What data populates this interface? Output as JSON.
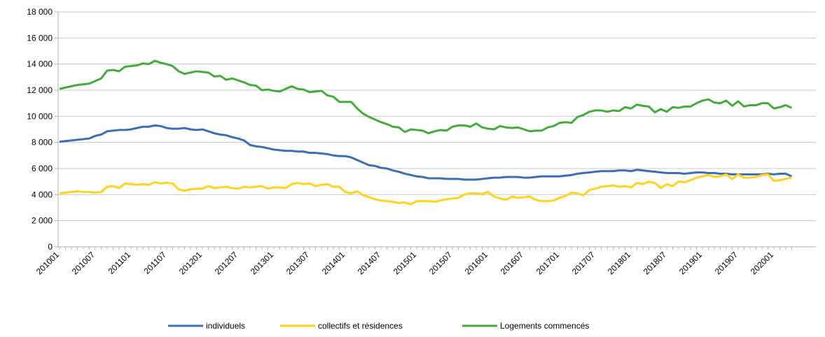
{
  "chart_data": {
    "type": "line",
    "categories": [
      "201001",
      null,
      null,
      null,
      null,
      null,
      "201007",
      null,
      null,
      null,
      null,
      null,
      "201101",
      null,
      null,
      null,
      null,
      null,
      "201107",
      null,
      null,
      null,
      null,
      null,
      "201201",
      null,
      null,
      null,
      null,
      null,
      "201207",
      null,
      null,
      null,
      null,
      null,
      "201301",
      null,
      null,
      null,
      null,
      null,
      "201307",
      null,
      null,
      null,
      null,
      null,
      "201401",
      null,
      null,
      null,
      null,
      null,
      "201407",
      null,
      null,
      null,
      null,
      null,
      "201501",
      null,
      null,
      null,
      null,
      null,
      "201507",
      null,
      null,
      null,
      null,
      null,
      "201601",
      null,
      null,
      null,
      null,
      null,
      "201607",
      null,
      null,
      null,
      null,
      null,
      "201701",
      null,
      null,
      null,
      null,
      null,
      "201707",
      null,
      null,
      null,
      null,
      null,
      "201801",
      null,
      null,
      null,
      null,
      null,
      "201807",
      null,
      null,
      null,
      null,
      null,
      "201901",
      null,
      null,
      null,
      null,
      null,
      "201907",
      null,
      null,
      null,
      null,
      null,
      "202001",
      null,
      null,
      null
    ],
    "series": [
      {
        "name": "individuels",
        "color": "#3d6db3",
        "values": [
          8050,
          8100,
          8150,
          8200,
          8250,
          8300,
          8500,
          8600,
          8850,
          8900,
          8950,
          8950,
          9000,
          9100,
          9200,
          9200,
          9300,
          9250,
          9100,
          9050,
          9050,
          9100,
          9000,
          8950,
          9000,
          8850,
          8700,
          8600,
          8550,
          8400,
          8300,
          8150,
          7800,
          7700,
          7650,
          7550,
          7450,
          7400,
          7350,
          7350,
          7300,
          7300,
          7200,
          7200,
          7150,
          7100,
          7000,
          6950,
          6950,
          6850,
          6650,
          6450,
          6250,
          6200,
          6050,
          6000,
          5850,
          5750,
          5600,
          5500,
          5400,
          5350,
          5250,
          5250,
          5250,
          5200,
          5200,
          5200,
          5150,
          5150,
          5150,
          5200,
          5250,
          5300,
          5300,
          5350,
          5350,
          5350,
          5300,
          5300,
          5350,
          5400,
          5400,
          5400,
          5400,
          5450,
          5500,
          5600,
          5650,
          5700,
          5750,
          5800,
          5800,
          5800,
          5850,
          5850,
          5800,
          5900,
          5850,
          5800,
          5750,
          5700,
          5650,
          5650,
          5650,
          5600,
          5650,
          5700,
          5700,
          5650,
          5650,
          5600,
          5600,
          5550,
          5550,
          5550,
          5550,
          5550,
          5550,
          5600,
          5550,
          5600,
          5600,
          5400
        ]
      },
      {
        "name": "collectifs et résidences",
        "color": "#ffd320",
        "values": [
          4100,
          4150,
          4200,
          4250,
          4200,
          4200,
          4150,
          4200,
          4600,
          4650,
          4500,
          4850,
          4800,
          4750,
          4800,
          4750,
          4950,
          4850,
          4900,
          4850,
          4400,
          4300,
          4400,
          4450,
          4450,
          4650,
          4500,
          4550,
          4600,
          4500,
          4450,
          4600,
          4550,
          4600,
          4650,
          4450,
          4550,
          4550,
          4500,
          4800,
          4900,
          4800,
          4850,
          4650,
          4750,
          4800,
          4600,
          4600,
          4200,
          4100,
          4250,
          3950,
          3800,
          3650,
          3550,
          3500,
          3450,
          3350,
          3400,
          3250,
          3500,
          3500,
          3500,
          3450,
          3550,
          3650,
          3700,
          3750,
          4000,
          4100,
          4100,
          4050,
          4200,
          3850,
          3700,
          3600,
          3850,
          3750,
          3800,
          3850,
          3600,
          3500,
          3500,
          3550,
          3750,
          3900,
          4150,
          4100,
          3950,
          4350,
          4450,
          4600,
          4650,
          4700,
          4600,
          4650,
          4550,
          4900,
          4800,
          5000,
          4900,
          4500,
          4800,
          4650,
          5000,
          4950,
          5100,
          5300,
          5400,
          5500,
          5350,
          5400,
          5550,
          5200,
          5550,
          5300,
          5300,
          5350,
          5500,
          5550,
          5050,
          5100,
          5200,
          5300
        ]
      },
      {
        "name": "Logements commencés",
        "color": "#45aa3e",
        "values": [
          12100,
          12200,
          12300,
          12400,
          12450,
          12500,
          12700,
          12900,
          13500,
          13550,
          13450,
          13800,
          13850,
          13900,
          14050,
          14000,
          14250,
          14100,
          14000,
          13850,
          13450,
          13250,
          13350,
          13450,
          13400,
          13350,
          13050,
          13100,
          12800,
          12900,
          12750,
          12600,
          12400,
          12350,
          12000,
          12050,
          11950,
          11900,
          12100,
          12300,
          12100,
          12050,
          11850,
          11900,
          11950,
          11600,
          11500,
          11100,
          11100,
          11100,
          10600,
          10200,
          9950,
          9750,
          9550,
          9400,
          9200,
          9150,
          8800,
          9000,
          8950,
          8900,
          8700,
          8850,
          8950,
          8900,
          9200,
          9300,
          9300,
          9200,
          9450,
          9150,
          9050,
          9000,
          9250,
          9150,
          9100,
          9150,
          9000,
          8850,
          8900,
          8900,
          9150,
          9250,
          9500,
          9550,
          9500,
          9950,
          10100,
          10350,
          10450,
          10450,
          10350,
          10450,
          10400,
          10700,
          10600,
          10900,
          10800,
          10750,
          10300,
          10550,
          10350,
          10700,
          10650,
          10750,
          10750,
          11000,
          11200,
          11300,
          11050,
          11000,
          11200,
          10800,
          11150,
          10750,
          10850,
          10850,
          11000,
          11000,
          10600,
          10700,
          10850,
          10650
        ]
      }
    ],
    "ylim": [
      0,
      18000
    ],
    "yticks": [
      0,
      {
        "value": 2000,
        "label": "2 000"
      },
      {
        "value": 4000,
        "label": "4 000"
      },
      {
        "value": 6000,
        "label": "6 000"
      },
      {
        "value": 8000,
        "label": "8 000"
      },
      {
        "value": 10000,
        "label": "10 000"
      },
      {
        "value": 12000,
        "label": "12 000"
      },
      {
        "value": 14000,
        "label": "14 000"
      },
      {
        "value": 16000,
        "label": "16 000"
      },
      {
        "value": 18000,
        "label": "18 000"
      }
    ],
    "grid": true,
    "legend": "bottom"
  }
}
